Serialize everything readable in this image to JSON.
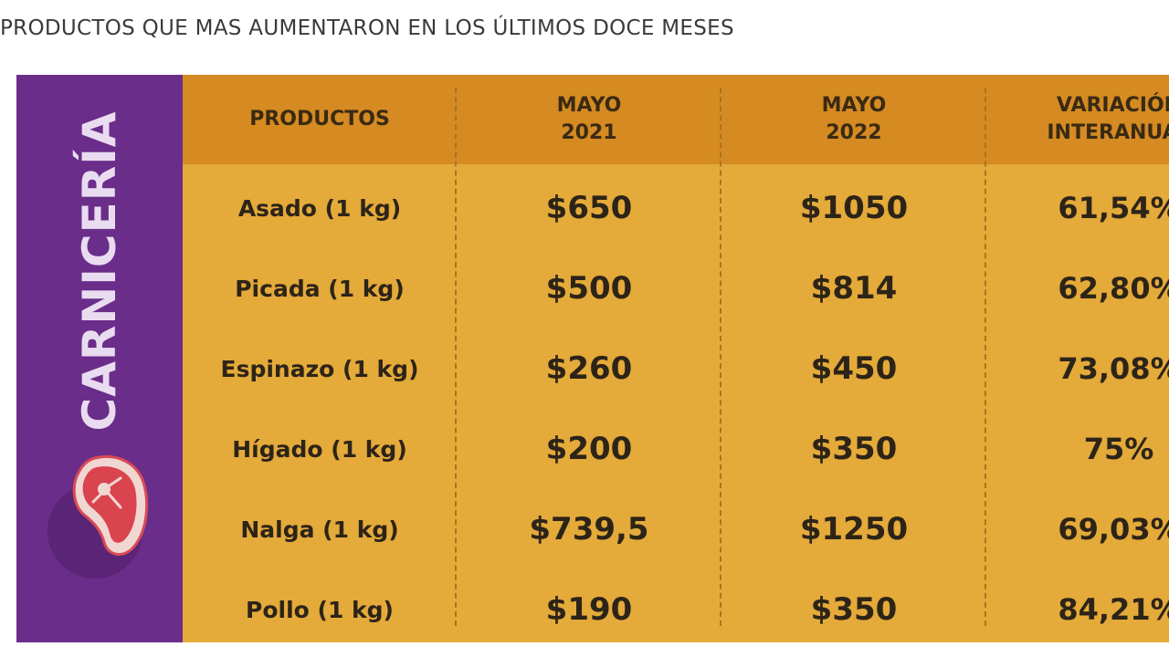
{
  "page": {
    "title": "PRODUCTOS QUE MAS AUMENTARON EN LOS ÚLTIMOS DOCE MESES"
  },
  "sidebar": {
    "category": "CARNICERÍA",
    "icon": "meat-steak-icon"
  },
  "colors": {
    "sidebar": "#6a2d8a",
    "header": "#d58a22",
    "body": "#e4aa3a"
  },
  "chart_data": {
    "type": "table",
    "columns": [
      "PRODUCTOS",
      "MAYO\n2021",
      "MAYO\n2022",
      "VARIACIÓN\nINTERANUAL"
    ],
    "rows": [
      {
        "product": "Asado (1 kg)",
        "mayo_2021": "$650",
        "mayo_2022": "$1050",
        "variacion": "61,54%"
      },
      {
        "product": "Picada (1 kg)",
        "mayo_2021": "$500",
        "mayo_2022": "$814",
        "variacion": "62,80%"
      },
      {
        "product": "Espinazo (1 kg)",
        "mayo_2021": "$260",
        "mayo_2022": "$450",
        "variacion": "73,08%"
      },
      {
        "product": "Hígado (1 kg)",
        "mayo_2021": "$200",
        "mayo_2022": "$350",
        "variacion": "75%"
      },
      {
        "product": "Nalga (1 kg)",
        "mayo_2021": "$739,5",
        "mayo_2022": "$1250",
        "variacion": "69,03%"
      },
      {
        "product": "Pollo (1 kg)",
        "mayo_2021": "$190",
        "mayo_2022": "$350",
        "variacion": "84,21%"
      }
    ]
  }
}
